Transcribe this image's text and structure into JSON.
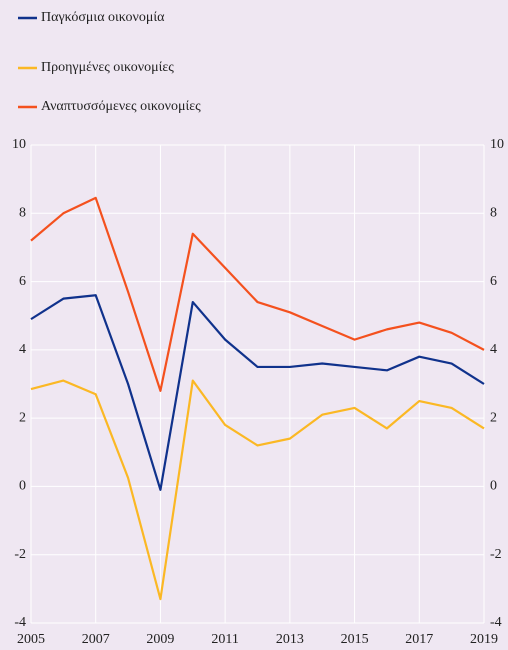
{
  "chart_data": {
    "type": "line",
    "x": [
      2005,
      2006,
      2007,
      2008,
      2009,
      2010,
      2011,
      2012,
      2013,
      2014,
      2015,
      2016,
      2017,
      2018,
      2019
    ],
    "series": [
      {
        "name": "Παγκόσμια οικονομία",
        "color": "#10328c",
        "values": [
          4.9,
          5.5,
          5.6,
          3.0,
          -0.1,
          5.4,
          4.3,
          3.5,
          3.5,
          3.6,
          3.5,
          3.4,
          3.8,
          3.6,
          3.0
        ]
      },
      {
        "name": "Προηγμένες οικονομίες",
        "color": "#fbb824",
        "values": [
          2.85,
          3.1,
          2.7,
          0.25,
          -3.3,
          3.1,
          1.8,
          1.2,
          1.4,
          2.1,
          2.3,
          1.7,
          2.5,
          2.3,
          1.7
        ]
      },
      {
        "name": "Αναπτυσσόμενες οικονομίες",
        "color": "#f4511e",
        "values": [
          7.2,
          8.0,
          8.45,
          5.7,
          2.8,
          7.4,
          6.4,
          5.4,
          5.1,
          4.7,
          4.3,
          4.6,
          4.8,
          4.5,
          4.0
        ]
      }
    ],
    "xlim": [
      2005,
      2019
    ],
    "xticks": [
      2005,
      2007,
      2009,
      2011,
      2013,
      2015,
      2017,
      2019
    ],
    "ylim": [
      -4,
      10
    ],
    "yticks": [
      -4,
      -2,
      0,
      2,
      4,
      6,
      8,
      10
    ],
    "y2lim": [
      -4,
      10
    ],
    "y2ticks": [
      -4,
      -2,
      0,
      2,
      4,
      6,
      8,
      10
    ],
    "grid": true,
    "legend": "top-left"
  }
}
